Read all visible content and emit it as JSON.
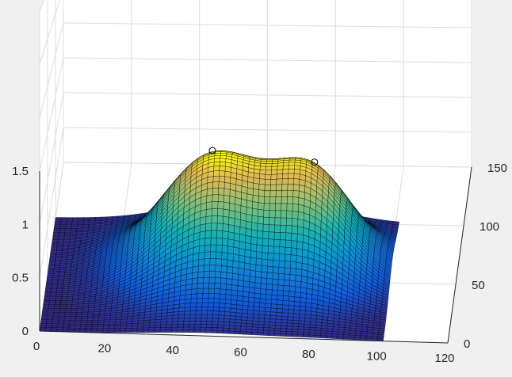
{
  "chart_data": {
    "type": "surface",
    "title": "",
    "xlabel": "",
    "ylabel": "",
    "zlabel": "",
    "grid": true,
    "colormap": "parula",
    "x_ticks": [
      "0",
      "20",
      "40",
      "60",
      "80",
      "100",
      "120"
    ],
    "y_ticks": [
      "0",
      "50",
      "100",
      "150"
    ],
    "z_ticks": [
      "0",
      "0.5",
      "1",
      "1.5"
    ],
    "xlim": [
      0,
      120
    ],
    "ylim": [
      0,
      150
    ],
    "zlim": [
      0,
      1.5
    ],
    "surface_extent": {
      "x": [
        0,
        101
      ],
      "y": [
        0,
        101
      ]
    },
    "peaks": [
      {
        "x": 48,
        "y": 60,
        "z": 1.2
      },
      {
        "x": 78,
        "y": 60,
        "z": 0.98
      }
    ],
    "colors": {
      "background": "#f0f0f0",
      "axes_face": "#ffffff",
      "grid": "#dcdcdc",
      "axis_line": "#262626",
      "mesh_edge": "#000000"
    }
  }
}
